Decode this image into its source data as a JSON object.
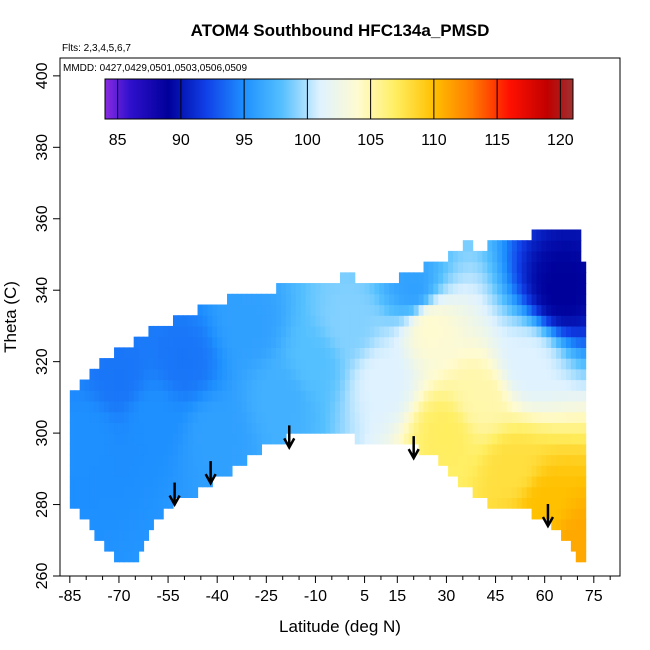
{
  "chart_data": {
    "type": "heatmap",
    "title": "ATOM4 Southbound HFC134a_PMSD",
    "annotations": [
      "Flts: 2,3,4,5,6,7",
      "MMDD: 0427,0429,0501,0503,0506,0509"
    ],
    "xlabel": "Latitude (deg N)",
    "ylabel": "Theta (C)",
    "xlim": [
      -88,
      83
    ],
    "ylim": [
      260,
      405
    ],
    "x_ticks": [
      -85,
      -70,
      -55,
      -40,
      -25,
      -10,
      5,
      15,
      30,
      45,
      60,
      75
    ],
    "y_ticks": [
      260,
      280,
      300,
      320,
      340,
      360,
      380,
      400
    ],
    "colorbar": {
      "range": [
        84,
        121
      ],
      "ticks": [
        85,
        90,
        95,
        100,
        105,
        110,
        115,
        120
      ],
      "stops": [
        {
          "v": 84,
          "c": "#8a2be2"
        },
        {
          "v": 86,
          "c": "#2f10cc"
        },
        {
          "v": 89,
          "c": "#00009a"
        },
        {
          "v": 92,
          "c": "#1040e8"
        },
        {
          "v": 95,
          "c": "#1e90ff"
        },
        {
          "v": 98,
          "c": "#55c0ff"
        },
        {
          "v": 101,
          "c": "#dff2ff"
        },
        {
          "v": 104,
          "c": "#fffbd0"
        },
        {
          "v": 107,
          "c": "#ffee60"
        },
        {
          "v": 110,
          "c": "#ffc000"
        },
        {
          "v": 113,
          "c": "#ff7a00"
        },
        {
          "v": 116,
          "c": "#ff1000"
        },
        {
          "v": 119,
          "c": "#c00000"
        },
        {
          "v": 121,
          "c": "#a03030"
        }
      ]
    },
    "coverage": {
      "lat": [
        -85,
        -80,
        -75,
        -70,
        -65,
        -60,
        -55,
        -50,
        -45,
        -40,
        -35,
        -30,
        -25,
        -20,
        -15,
        -10,
        -5,
        0,
        5,
        10,
        15,
        20,
        25,
        30,
        35,
        40,
        45,
        50,
        55,
        60,
        65,
        70,
        72
      ],
      "theta_bottom": [
        281,
        275,
        269,
        263,
        263,
        273,
        280,
        282,
        284,
        287,
        290,
        293,
        296,
        298,
        300,
        301,
        300,
        299,
        298,
        297,
        298,
        296,
        294,
        291,
        285,
        282,
        279,
        279,
        278,
        276,
        272,
        265,
        264
      ],
      "theta_top": [
        310,
        315,
        320,
        323,
        326,
        329,
        331,
        333,
        335,
        336,
        338,
        338,
        339,
        341,
        342,
        343,
        343,
        344,
        343,
        343,
        343,
        345,
        347,
        349,
        353,
        352,
        353,
        355,
        355,
        357,
        358,
        358,
        345
      ]
    },
    "field_samples": [
      {
        "lat": -80,
        "theta": 300,
        "value": 95
      },
      {
        "lat": -70,
        "theta": 315,
        "value": 94
      },
      {
        "lat": -60,
        "theta": 305,
        "value": 95
      },
      {
        "lat": -50,
        "theta": 320,
        "value": 94
      },
      {
        "lat": -40,
        "theta": 300,
        "value": 96
      },
      {
        "lat": -30,
        "theta": 330,
        "value": 96
      },
      {
        "lat": -20,
        "theta": 310,
        "value": 97
      },
      {
        "lat": -10,
        "theta": 320,
        "value": 98
      },
      {
        "lat": 0,
        "theta": 330,
        "value": 99
      },
      {
        "lat": 10,
        "theta": 315,
        "value": 101
      },
      {
        "lat": 20,
        "theta": 340,
        "value": 96
      },
      {
        "lat": 25,
        "theta": 330,
        "value": 104
      },
      {
        "lat": 30,
        "theta": 300,
        "value": 107
      },
      {
        "lat": 40,
        "theta": 310,
        "value": 105
      },
      {
        "lat": 50,
        "theta": 290,
        "value": 108
      },
      {
        "lat": 55,
        "theta": 320,
        "value": 101
      },
      {
        "lat": 60,
        "theta": 280,
        "value": 110
      },
      {
        "lat": 65,
        "theta": 340,
        "value": 89
      },
      {
        "lat": 70,
        "theta": 270,
        "value": 111
      }
    ],
    "arrows": [
      {
        "lat": -53,
        "theta": 280
      },
      {
        "lat": -42,
        "theta": 286
      },
      {
        "lat": -18,
        "theta": 296
      },
      {
        "lat": 20,
        "theta": 293
      },
      {
        "lat": 61,
        "theta": 274
      }
    ]
  }
}
